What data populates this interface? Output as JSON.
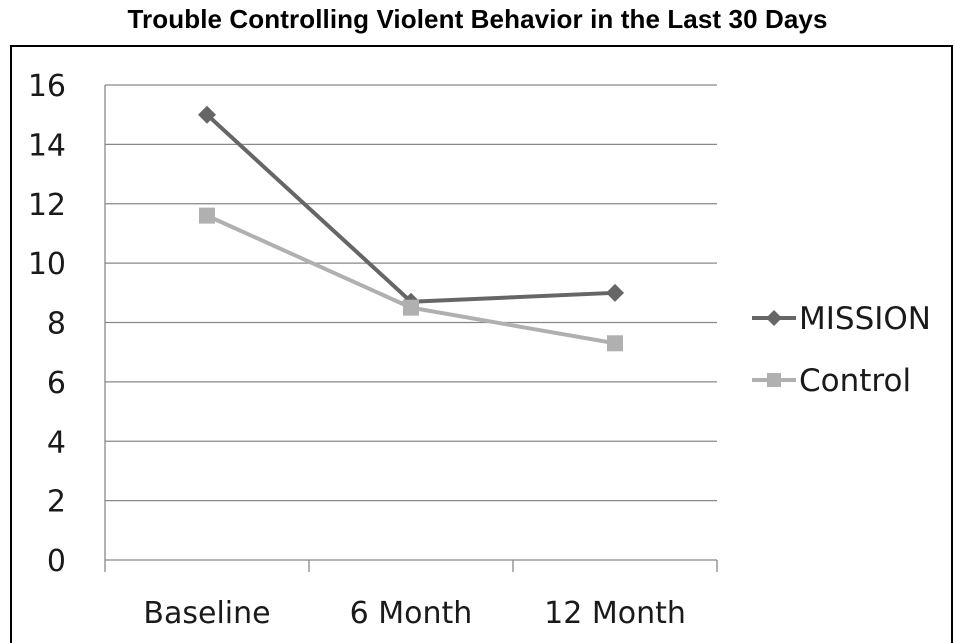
{
  "chart_data": {
    "type": "line",
    "title": "Trouble Controlling Violent Behavior in the Last 30 Days",
    "categories": [
      "Baseline",
      "6 Month",
      "12 Month"
    ],
    "series": [
      {
        "name": "MISSION",
        "values": [
          15.0,
          8.7,
          9.0
        ],
        "color": "#666666",
        "marker": "diamond"
      },
      {
        "name": "Control",
        "values": [
          11.6,
          8.5,
          7.3
        ],
        "color": "#b0b0b0",
        "marker": "square"
      }
    ],
    "yticks": [
      "0",
      "2",
      "4",
      "6",
      "8",
      "10",
      "12",
      "14",
      "16"
    ],
    "ylim": [
      0,
      16
    ],
    "grid": true,
    "legend_position": "right"
  }
}
